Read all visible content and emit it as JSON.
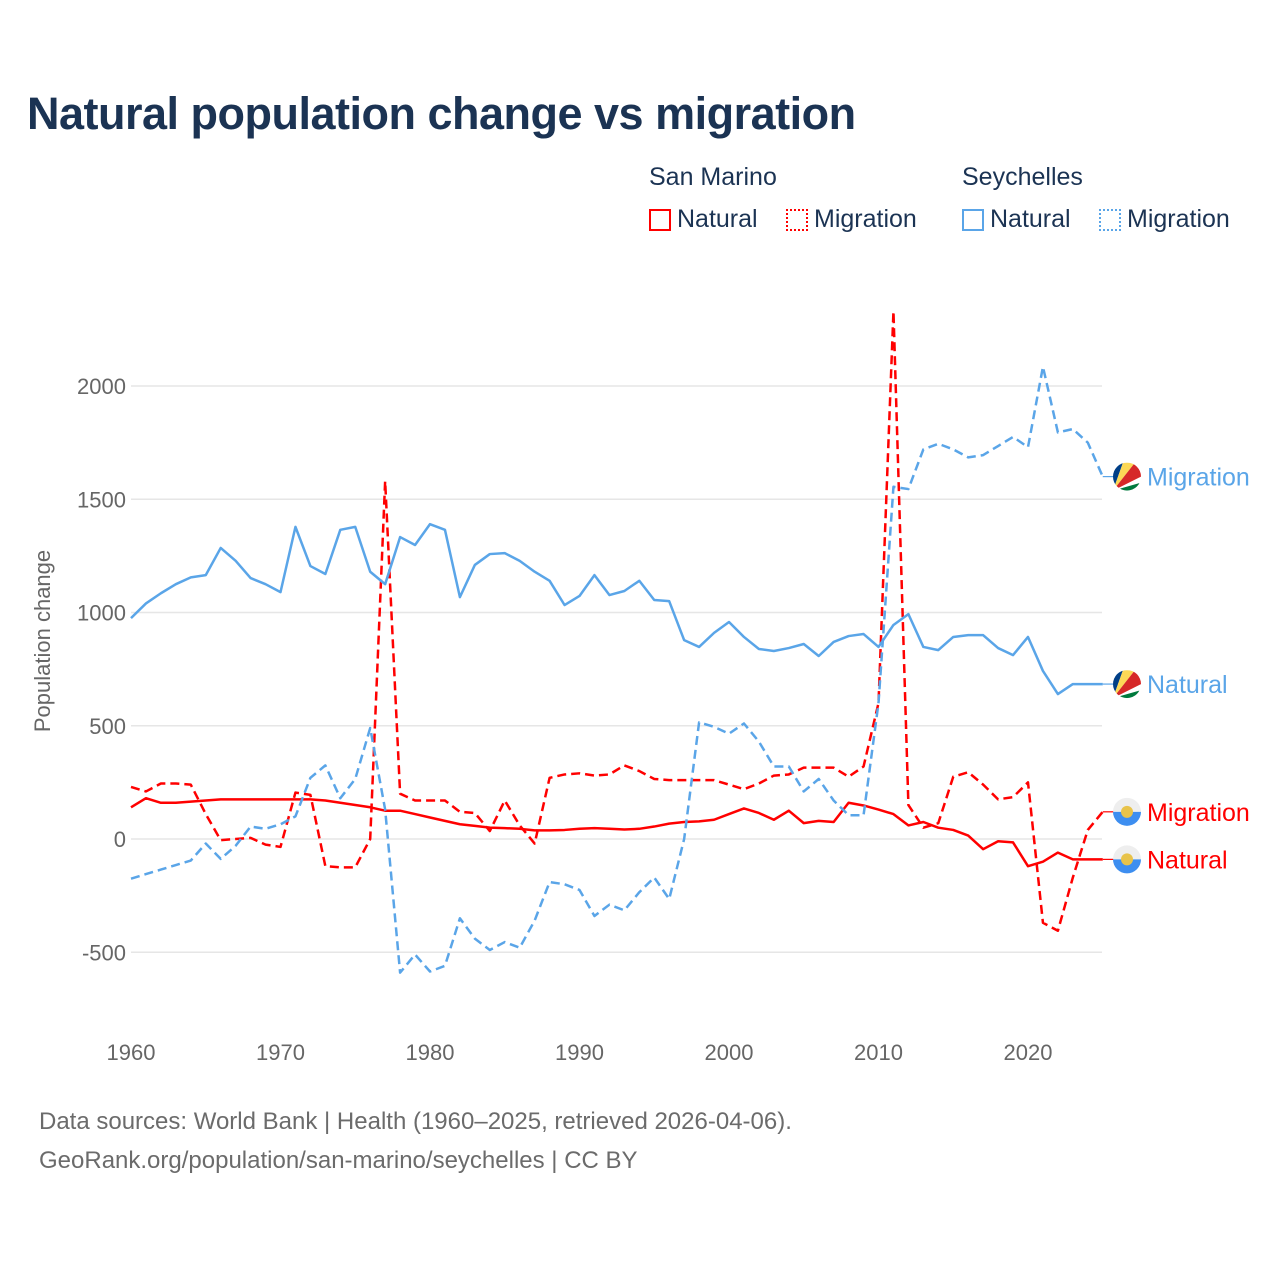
{
  "chart_data": {
    "type": "line",
    "title": "Natural population change vs migration",
    "xlabel": "",
    "ylabel": "Population change",
    "xlim": [
      1960,
      2025
    ],
    "ylim": [
      -700,
      2350
    ],
    "x_ticks": [
      1960,
      1970,
      1980,
      1990,
      2000,
      2010,
      2020
    ],
    "y_ticks": [
      -500,
      0,
      500,
      1000,
      1500,
      2000
    ],
    "grid": true,
    "legend": {
      "placement": "top-right",
      "groups": [
        {
          "name": "San Marino",
          "items": [
            "Natural",
            "Migration"
          ]
        },
        {
          "name": "Seychelles",
          "items": [
            "Natural",
            "Migration"
          ]
        }
      ]
    },
    "x_start": 1960,
    "series": [
      {
        "country": "San Marino",
        "name": "Natural",
        "end_label": "Natural",
        "color": "#ff0000",
        "dash": false,
        "values": [
          140,
          180,
          160,
          160,
          165,
          170,
          175,
          175,
          175,
          175,
          175,
          175,
          175,
          170,
          160,
          150,
          140,
          125,
          125,
          110,
          95,
          80,
          65,
          58,
          50,
          48,
          45,
          38,
          38,
          40,
          45,
          48,
          45,
          42,
          45,
          55,
          68,
          75,
          78,
          85,
          110,
          135,
          115,
          85,
          125,
          70,
          80,
          75,
          160,
          148,
          130,
          110,
          60,
          75,
          50,
          40,
          15,
          -45,
          -10,
          -15,
          -120,
          -100,
          -60,
          -90,
          -90,
          -90
        ]
      },
      {
        "country": "San Marino",
        "name": "Migration",
        "end_label": "Migration",
        "color": "#ff0000",
        "dash": true,
        "values": [
          230,
          210,
          245,
          245,
          240,
          110,
          -5,
          0,
          5,
          -25,
          -35,
          205,
          195,
          -120,
          -125,
          -125,
          0,
          1580,
          200,
          170,
          170,
          170,
          120,
          115,
          35,
          170,
          60,
          -20,
          270,
          285,
          290,
          280,
          285,
          325,
          300,
          265,
          260,
          260,
          260,
          260,
          240,
          220,
          245,
          280,
          285,
          315,
          315,
          315,
          275,
          320,
          600,
          2330,
          150,
          50,
          70,
          275,
          295,
          240,
          175,
          185,
          250,
          -370,
          -405,
          -170,
          40,
          120
        ]
      },
      {
        "country": "Seychelles",
        "name": "Natural",
        "end_label": "Natural",
        "color": "#5aa5e8",
        "dash": false,
        "values": [
          975,
          1040,
          1085,
          1125,
          1155,
          1165,
          1285,
          1228,
          1152,
          1125,
          1090,
          1378,
          1205,
          1170,
          1365,
          1378,
          1180,
          1125,
          1333,
          1298,
          1390,
          1365,
          1068,
          1210,
          1258,
          1262,
          1228,
          1180,
          1140,
          1033,
          1073,
          1165,
          1077,
          1095,
          1140,
          1055,
          1050,
          878,
          848,
          910,
          958,
          892,
          839,
          830,
          843,
          861,
          808,
          870,
          896,
          905,
          848,
          945,
          993,
          848,
          834,
          892,
          900,
          900,
          843,
          812,
          892,
          742,
          640,
          684,
          684,
          684
        ]
      },
      {
        "country": "Seychelles",
        "name": "Migration",
        "end_label": "Migration",
        "color": "#5aa5e8",
        "dash": true,
        "values": [
          -175,
          -155,
          -135,
          -115,
          -95,
          -20,
          -88,
          -30,
          55,
          45,
          65,
          100,
          270,
          325,
          180,
          265,
          490,
          130,
          -590,
          -510,
          -585,
          -560,
          -350,
          -440,
          -490,
          -455,
          -480,
          -360,
          -190,
          -200,
          -225,
          -340,
          -290,
          -315,
          -235,
          -170,
          -265,
          0,
          515,
          495,
          465,
          510,
          430,
          320,
          320,
          210,
          265,
          170,
          105,
          105,
          600,
          1555,
          1545,
          1720,
          1745,
          1720,
          1685,
          1695,
          1735,
          1775,
          1730,
          2085,
          1795,
          1810,
          1750,
          1600
        ]
      }
    ]
  },
  "footer": {
    "line1": "Data sources: World Bank | Health (1960–2025, retrieved 2026-04-06).",
    "line2": "GeoRank.org/population/san-marino/seychelles | CC BY"
  },
  "icons": {
    "san_marino_flag": "san-marino-flag-icon",
    "seychelles_flag": "seychelles-flag-icon"
  }
}
